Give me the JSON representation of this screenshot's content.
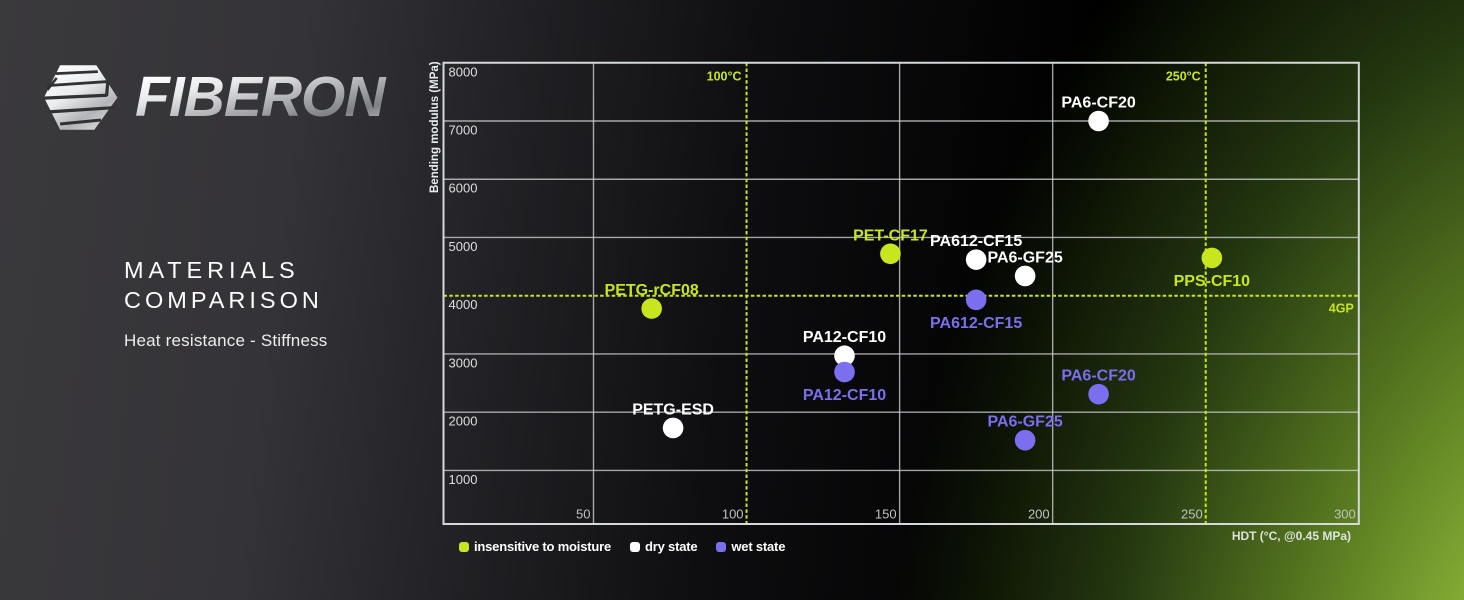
{
  "brand": {
    "wordmark": "FIBERON"
  },
  "headline": {
    "line1": "MATERIALS",
    "line2": "COMPARISON",
    "subtitle": "Heat resistance - Stiffness"
  },
  "colors": {
    "lime": "#c8e61e",
    "white": "#ffffff",
    "violet": "#7b6ff0",
    "grid": "#caccce",
    "border": "#d6d9db",
    "tick_text_y": "#dcdedf",
    "tick_text_x": "#bfc1c3",
    "axis_title": "#e9edee"
  },
  "chart_data": {
    "type": "scatter",
    "title": "MATERIALS COMPARISON",
    "subtitle": "Heat resistance - Stiffness",
    "xlabel": "HDT (°C, @0.45 MPa)",
    "ylabel": "Bending modulus (MPa)",
    "xlim": [
      1,
      300
    ],
    "ylim": [
      80,
      8000
    ],
    "x_ticks": [
      50,
      100,
      150,
      200,
      250,
      300
    ],
    "y_ticks": [
      1000,
      2000,
      3000,
      4000,
      5000,
      6000,
      7000,
      8000
    ],
    "grid": true,
    "reference_lines": {
      "vertical": [
        {
          "value": 100,
          "label": "100°C"
        },
        {
          "value": 250,
          "label": "250°C"
        }
      ],
      "horizontal": [
        {
          "value": 4000,
          "label": "4GP"
        }
      ]
    },
    "legend": [
      {
        "label": "insensitive to moisture",
        "series": "lime"
      },
      {
        "label": "dry state",
        "series": "white"
      },
      {
        "label": "wet state",
        "series": "violet"
      }
    ],
    "series_names": {
      "lime": "insensitive to moisture",
      "white": "dry state",
      "violet": "wet state"
    },
    "points": [
      {
        "name": "PETG-rCF08",
        "x": 69,
        "y": 3780,
        "series": "lime",
        "label_pos": "above"
      },
      {
        "name": "PETG-ESD",
        "x": 76,
        "y": 1730,
        "series": "white",
        "label_pos": "above"
      },
      {
        "name": "PA12-CF10",
        "x": 132,
        "y": 2970,
        "series": "white",
        "label_pos": "above"
      },
      {
        "name": "PA12-CF10",
        "x": 132,
        "y": 2690,
        "series": "violet",
        "label_pos": "below"
      },
      {
        "name": "PET-CF17",
        "x": 147,
        "y": 4720,
        "series": "lime",
        "label_pos": "above"
      },
      {
        "name": "PA612-CF15",
        "x": 175,
        "y": 4620,
        "series": "white",
        "label_pos": "above"
      },
      {
        "name": "PA612-CF15",
        "x": 175,
        "y": 3930,
        "series": "violet",
        "label_pos": "below"
      },
      {
        "name": "PA6-GF25",
        "x": 191,
        "y": 4340,
        "series": "white",
        "label_pos": "above"
      },
      {
        "name": "PA6-GF25",
        "x": 191,
        "y": 1520,
        "series": "violet",
        "label_pos": "above"
      },
      {
        "name": "PA6-CF20",
        "x": 215,
        "y": 7000,
        "series": "white",
        "label_pos": "above"
      },
      {
        "name": "PA6-CF20",
        "x": 215,
        "y": 2310,
        "series": "violet",
        "label_pos": "above"
      },
      {
        "name": "PPS-CF10",
        "x": 252,
        "y": 4650,
        "series": "lime",
        "label_pos": "below"
      }
    ]
  }
}
